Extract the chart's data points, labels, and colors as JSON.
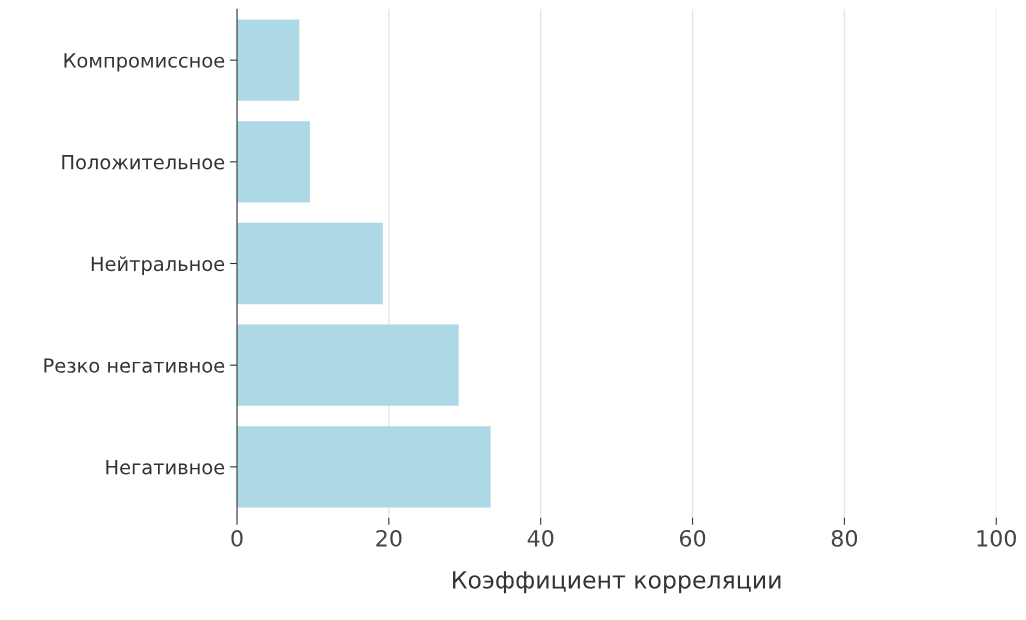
{
  "chart_data": {
    "type": "bar",
    "orientation": "horizontal",
    "categories": [
      "Компромиссное",
      "Положительное",
      "Нейтральное",
      "Резко негативное",
      "Негативное"
    ],
    "values": [
      8.2,
      9.6,
      19.2,
      29.2,
      33.4
    ],
    "color": "#add8e6",
    "xlabel": "Коэффициент корреляции",
    "xlim": [
      0,
      100
    ],
    "xticks": [
      0,
      20,
      40,
      60,
      80,
      100
    ],
    "grid": "x"
  }
}
